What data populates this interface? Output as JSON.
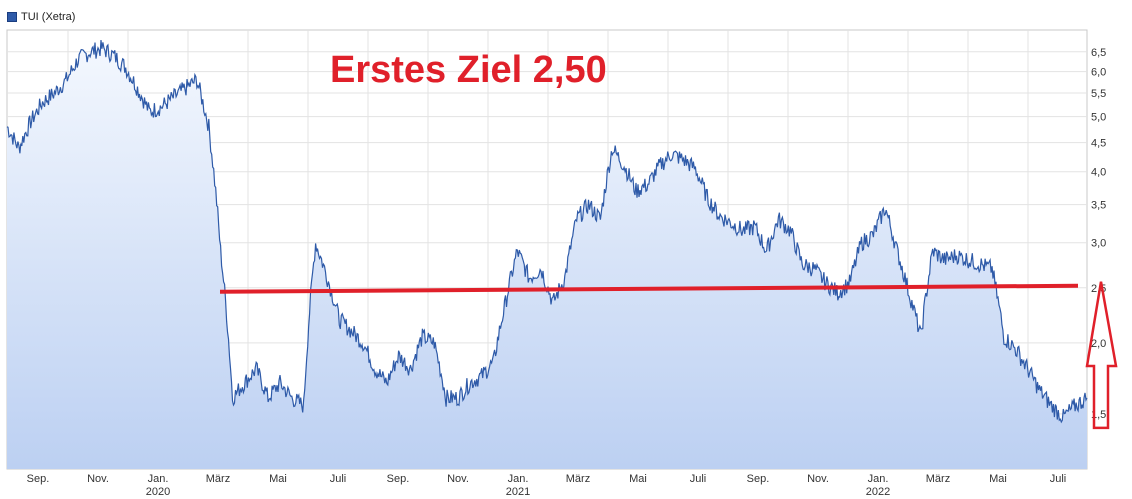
{
  "legend": {
    "label": "TUI (Xetra)",
    "color": "#2e5aa8"
  },
  "chart_data": {
    "type": "area",
    "yscale": "log",
    "ylim": [
      1.2,
      7.1
    ],
    "y_ticks": [
      {
        "value": 6.5,
        "label": "6,5"
      },
      {
        "value": 6.0,
        "label": "6,0"
      },
      {
        "value": 5.5,
        "label": "5,5"
      },
      {
        "value": 5.0,
        "label": "5,0"
      },
      {
        "value": 4.5,
        "label": "4,5"
      },
      {
        "value": 4.0,
        "label": "4,0"
      },
      {
        "value": 3.5,
        "label": "3,5"
      },
      {
        "value": 3.0,
        "label": "3,0"
      },
      {
        "value": 2.5,
        "label": "2,5"
      },
      {
        "value": 2.0,
        "label": "2,0"
      },
      {
        "value": 1.5,
        "label": "1,5"
      }
    ],
    "x_ticks": [
      {
        "label": "Sep.",
        "year": ""
      },
      {
        "label": "Nov.",
        "year": ""
      },
      {
        "label": "Jan.",
        "year": "2020"
      },
      {
        "label": "März",
        "year": ""
      },
      {
        "label": "Mai",
        "year": ""
      },
      {
        "label": "Juli",
        "year": ""
      },
      {
        "label": "Sep.",
        "year": ""
      },
      {
        "label": "Nov.",
        "year": ""
      },
      {
        "label": "Jan.",
        "year": "2021"
      },
      {
        "label": "März",
        "year": ""
      },
      {
        "label": "Mai",
        "year": ""
      },
      {
        "label": "Juli",
        "year": ""
      },
      {
        "label": "Sep.",
        "year": ""
      },
      {
        "label": "Nov.",
        "year": ""
      },
      {
        "label": "Jan.",
        "year": "2022"
      },
      {
        "label": "März",
        "year": ""
      },
      {
        "label": "Mai",
        "year": ""
      },
      {
        "label": "Juli",
        "year": ""
      }
    ],
    "series": [
      {
        "name": "TUI (Xetra)",
        "color": "#2e5aa8",
        "values": [
          4.8,
          4.4,
          4.9,
          5.3,
          5.5,
          5.8,
          6.3,
          6.5,
          6.6,
          6.4,
          6.1,
          5.6,
          5.1,
          5.2,
          5.4,
          5.6,
          5.8,
          4.8,
          2.9,
          1.6,
          1.7,
          1.8,
          1.6,
          1.7,
          1.6,
          1.55,
          3.0,
          2.6,
          2.2,
          2.1,
          2.0,
          1.8,
          1.7,
          1.9,
          1.8,
          2.05,
          2.0,
          1.6,
          1.6,
          1.7,
          1.75,
          1.85,
          2.35,
          2.9,
          2.6,
          2.7,
          2.35,
          2.6,
          3.3,
          3.5,
          3.3,
          4.4,
          4.1,
          3.7,
          3.8,
          4.1,
          4.3,
          4.2,
          4.05,
          3.6,
          3.35,
          3.25,
          3.15,
          3.2,
          2.9,
          3.3,
          3.15,
          2.75,
          2.7,
          2.55,
          2.45,
          2.55,
          3.0,
          3.1,
          3.45,
          2.9,
          2.45,
          2.05,
          2.9,
          2.8,
          2.85,
          2.8,
          2.75,
          2.7,
          2.05,
          1.95,
          1.8,
          1.65,
          1.55,
          1.48,
          1.55,
          1.6
        ]
      }
    ],
    "annotations": [
      {
        "type": "horizontal_line",
        "value": 2.5,
        "color": "#e0202a"
      },
      {
        "type": "text",
        "text": "Erstes Ziel 2,50",
        "color": "#e0202a"
      },
      {
        "type": "arrow",
        "direction": "up",
        "from": 1.5,
        "to": 2.5,
        "color": "#e0202a"
      }
    ],
    "grid": true
  }
}
